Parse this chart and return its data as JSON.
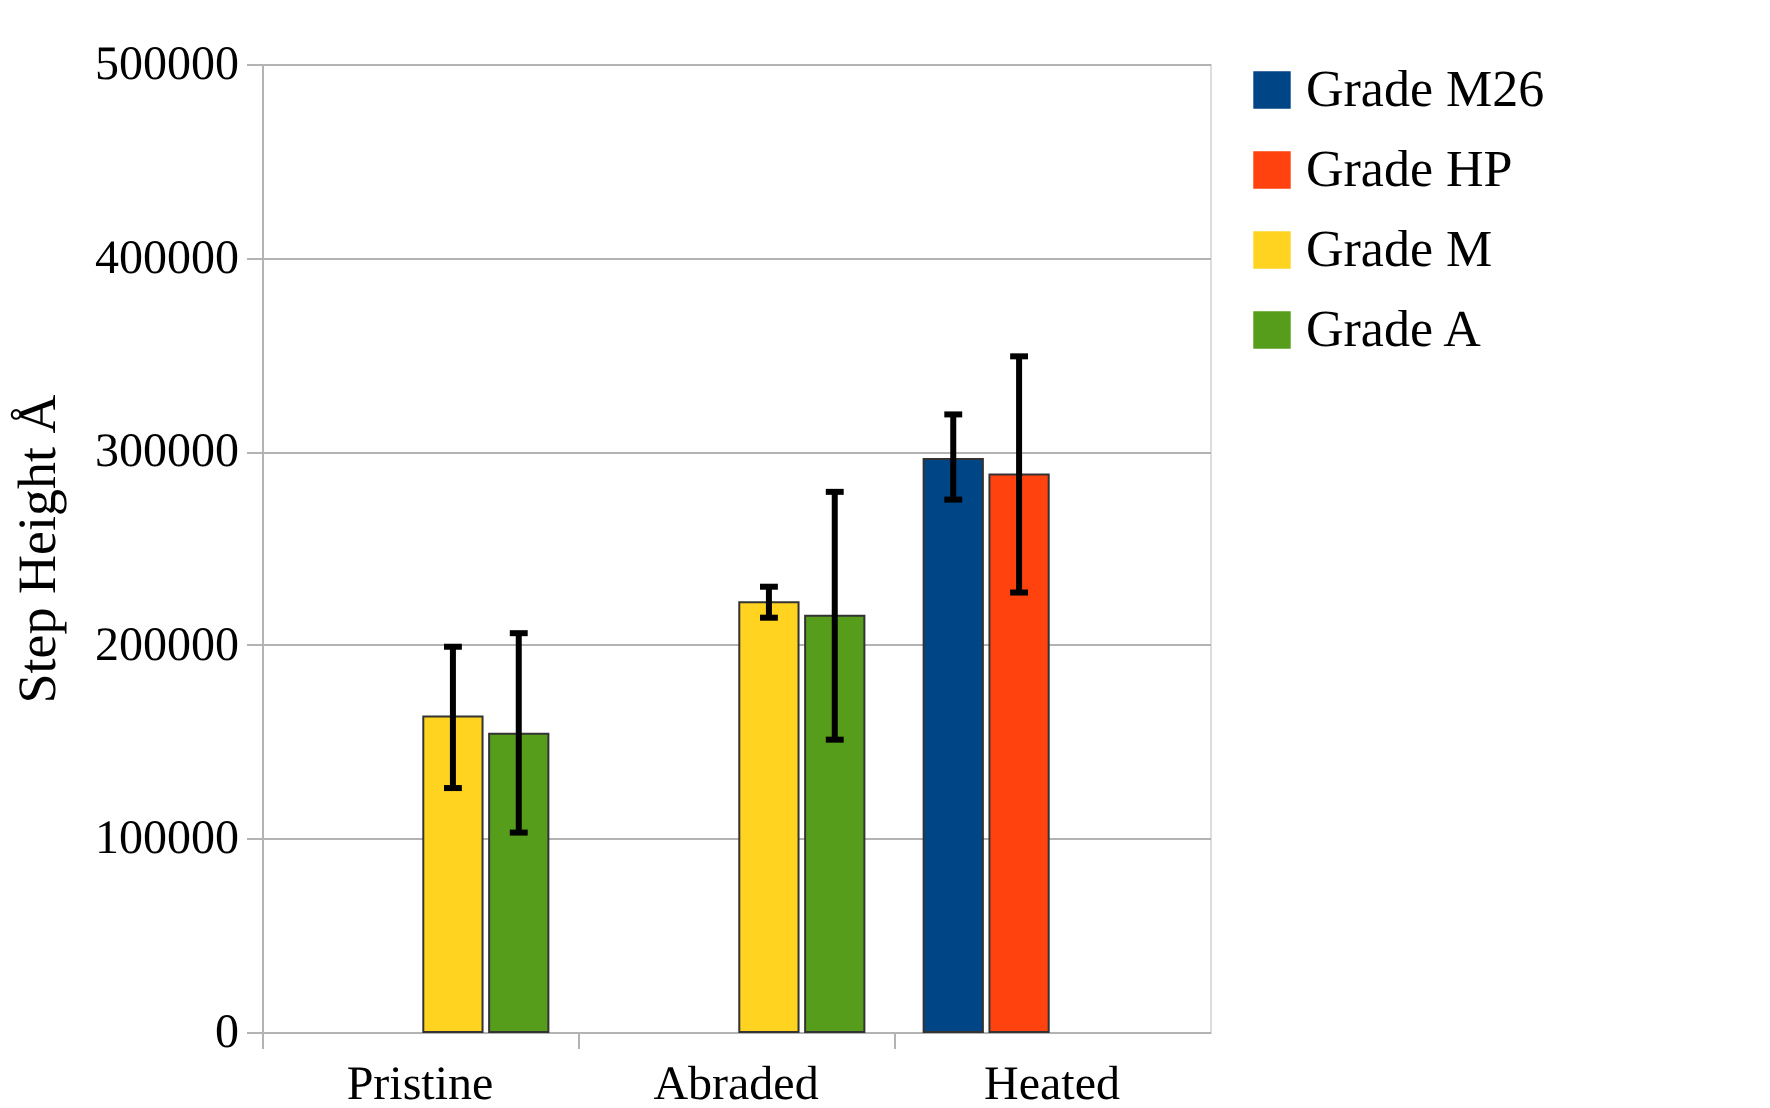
{
  "chart_data": {
    "type": "bar",
    "ylabel": "Step Height Å",
    "categories": [
      "Pristine",
      "Abraded",
      "Heated"
    ],
    "series": [
      {
        "name": "Grade M26",
        "color": "#004586",
        "values": [
          null,
          null,
          296000
        ],
        "errors": [
          null,
          null,
          [
            275000,
            319000
          ]
        ]
      },
      {
        "name": "Grade HP",
        "color": "#ff420e",
        "values": [
          null,
          null,
          288000
        ],
        "errors": [
          null,
          null,
          [
            227000,
            349000
          ]
        ]
      },
      {
        "name": "Grade M",
        "color": "#ffd320",
        "values": [
          163000,
          222000,
          null
        ],
        "errors": [
          [
            126000,
            199000
          ],
          [
            214000,
            230000
          ],
          null
        ]
      },
      {
        "name": "Grade A",
        "color": "#579d1c",
        "values": [
          154000,
          215000,
          null
        ],
        "errors": [
          [
            103000,
            206000
          ],
          [
            151000,
            279000
          ],
          null
        ]
      }
    ],
    "ylim": [
      0,
      500000
    ],
    "yticks": [
      0,
      100000,
      200000,
      300000,
      400000,
      500000
    ],
    "grid": "y",
    "legend": "right"
  }
}
